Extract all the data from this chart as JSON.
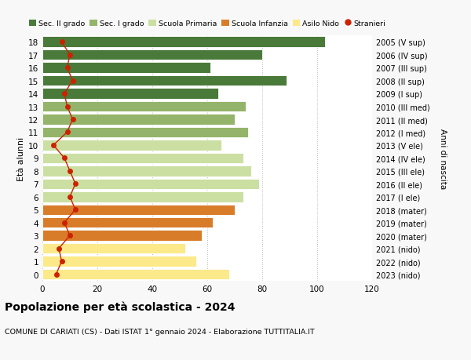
{
  "ages": [
    0,
    1,
    2,
    3,
    4,
    5,
    6,
    7,
    8,
    9,
    10,
    11,
    12,
    13,
    14,
    15,
    16,
    17,
    18
  ],
  "bar_values": [
    68,
    56,
    52,
    58,
    62,
    70,
    73,
    79,
    76,
    73,
    65,
    75,
    70,
    74,
    64,
    89,
    61,
    80,
    103
  ],
  "bar_colors": [
    "#fce98a",
    "#fce98a",
    "#fce98a",
    "#d97c2a",
    "#d97c2a",
    "#d97c2a",
    "#ccdfa3",
    "#ccdfa3",
    "#ccdfa3",
    "#ccdfa3",
    "#ccdfa3",
    "#93b46a",
    "#93b46a",
    "#93b46a",
    "#4a7a3a",
    "#4a7a3a",
    "#4a7a3a",
    "#4a7a3a",
    "#4a7a3a"
  ],
  "stranieri_values": [
    5,
    7,
    6,
    10,
    8,
    12,
    10,
    12,
    10,
    8,
    4,
    9,
    11,
    9,
    8,
    11,
    9,
    10,
    7
  ],
  "right_labels": [
    "2023 (nido)",
    "2022 (nido)",
    "2021 (nido)",
    "2020 (mater)",
    "2019 (mater)",
    "2018 (mater)",
    "2017 (I ele)",
    "2016 (II ele)",
    "2015 (III ele)",
    "2014 (IV ele)",
    "2013 (V ele)",
    "2012 (I med)",
    "2011 (II med)",
    "2010 (III med)",
    "2009 (I sup)",
    "2008 (II sup)",
    "2007 (III sup)",
    "2006 (IV sup)",
    "2005 (V sup)"
  ],
  "legend_labels": [
    "Sec. II grado",
    "Sec. I grado",
    "Scuola Primaria",
    "Scuola Infanzia",
    "Asilo Nido",
    "Stranieri"
  ],
  "legend_colors": [
    "#4a7a3a",
    "#93b46a",
    "#ccdfa3",
    "#d97c2a",
    "#fce98a",
    "#cc2200"
  ],
  "ylabel_left": "Età alunni",
  "ylabel_right": "Anni di nascita",
  "title": "Popolazione per età scolastica - 2024",
  "subtitle": "COMUNE DI CARIATI (CS) - Dati ISTAT 1° gennaio 2024 - Elaborazione TUTTITALIA.IT",
  "xlim": [
    0,
    120
  ],
  "background_color": "#f8f8f8",
  "bar_background": "#ffffff"
}
